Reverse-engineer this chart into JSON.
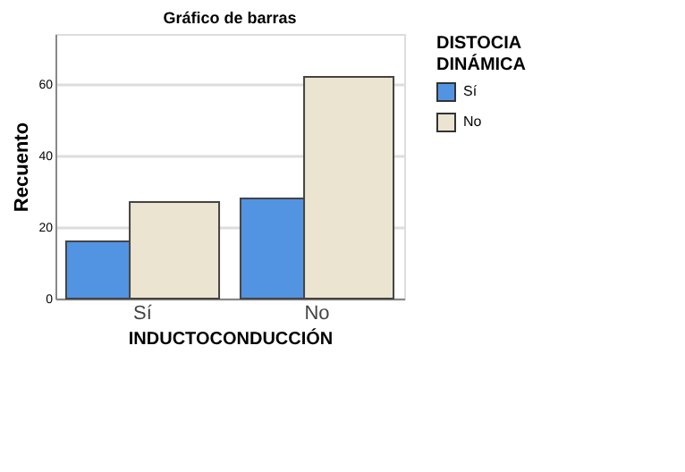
{
  "chart_data": {
    "type": "bar",
    "title": "Gráfico de barras",
    "xlabel": "INDUCTOCONDUCCIÓN",
    "ylabel": "Recuento",
    "legend_title": "DISTOCIA DINÁMICA",
    "categories": [
      "Sí",
      "No"
    ],
    "series": [
      {
        "name": "Sí",
        "color": "#5294e2",
        "values": [
          16,
          28
        ]
      },
      {
        "name": "No",
        "color": "#ebe4d0",
        "values": [
          27,
          62
        ]
      }
    ],
    "ylim": [
      0,
      74
    ],
    "yticks": [
      0,
      20,
      40,
      60
    ],
    "grid": "y",
    "legend": "top right"
  }
}
